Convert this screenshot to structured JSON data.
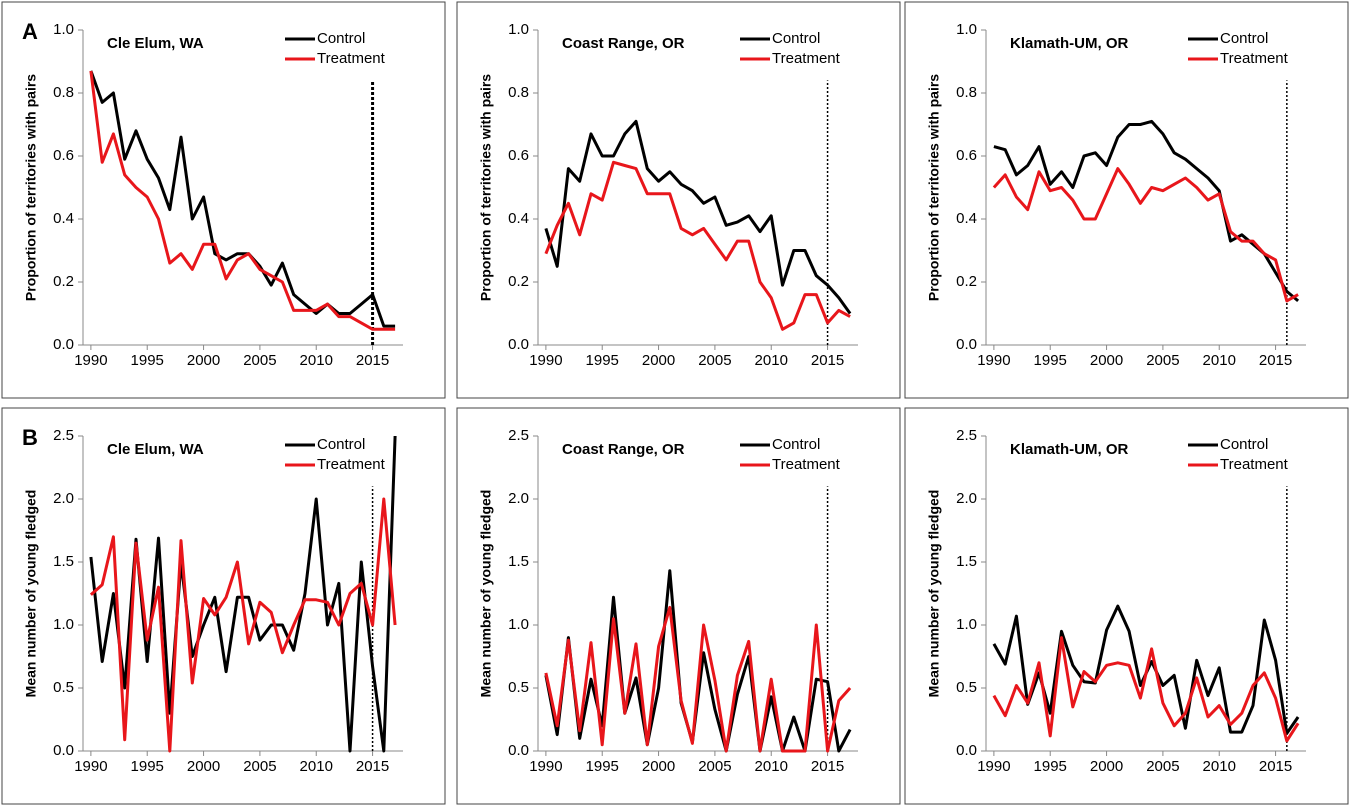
{
  "chart_data": [
    {
      "type": "line",
      "panel_label": "A",
      "title": "Cle Elum, WA",
      "ylabel": "Proportion of territories with pairs",
      "x": [
        1990,
        1991,
        1992,
        1993,
        1994,
        1995,
        1996,
        1997,
        1998,
        1999,
        2000,
        2001,
        2002,
        2003,
        2004,
        2005,
        2006,
        2007,
        2008,
        2009,
        2010,
        2011,
        2012,
        2013,
        2014,
        2015,
        2016,
        2017
      ],
      "series": [
        {
          "name": "Control",
          "color": "#000000",
          "values": [
            0.87,
            0.77,
            0.8,
            0.59,
            0.68,
            0.59,
            0.53,
            0.43,
            0.66,
            0.4,
            0.47,
            0.29,
            0.27,
            0.29,
            0.29,
            0.25,
            0.19,
            0.26,
            0.16,
            0.13,
            0.1,
            0.13,
            0.1,
            0.1,
            0.13,
            0.16,
            0.06,
            0.06
          ]
        },
        {
          "name": "Treatment",
          "color": "#e8161b",
          "values": [
            0.87,
            0.58,
            0.67,
            0.54,
            0.5,
            0.47,
            0.4,
            0.26,
            0.29,
            0.24,
            0.32,
            0.32,
            0.21,
            0.27,
            0.29,
            0.24,
            0.22,
            0.2,
            0.11,
            0.11,
            0.11,
            0.13,
            0.09,
            0.09,
            0.07,
            0.05,
            0.05,
            0.05
          ]
        }
      ],
      "xlim": [
        1989.3,
        2017.7
      ],
      "xticks": [
        1990,
        1995,
        2000,
        2005,
        2010,
        2015
      ],
      "ylim": [
        0,
        1
      ],
      "yticks": [
        {
          "value": 0,
          "label": "0.0"
        },
        0.2,
        0.4,
        0.6,
        0.8,
        {
          "value": 1,
          "label": "1.0"
        }
      ],
      "vline": 2015,
      "legend": "upper right"
    },
    {
      "type": "line",
      "title": "Coast Range, OR",
      "ylabel": "Proportion of territories with pairs",
      "x": [
        1990,
        1991,
        1992,
        1993,
        1994,
        1995,
        1996,
        1997,
        1998,
        1999,
        2000,
        2001,
        2002,
        2003,
        2004,
        2005,
        2006,
        2007,
        2008,
        2009,
        2010,
        2011,
        2012,
        2013,
        2014,
        2015,
        2016,
        2017
      ],
      "series": [
        {
          "name": "Control",
          "color": "#000000",
          "values": [
            0.37,
            0.25,
            0.56,
            0.52,
            0.67,
            0.6,
            0.6,
            0.67,
            0.71,
            0.56,
            0.52,
            0.55,
            0.51,
            0.49,
            0.45,
            0.47,
            0.38,
            0.39,
            0.41,
            0.36,
            0.41,
            0.19,
            0.3,
            0.3,
            0.22,
            0.19,
            0.15,
            0.1
          ]
        },
        {
          "name": "Treatment",
          "color": "#e8161b",
          "values": [
            0.29,
            0.38,
            0.45,
            0.35,
            0.48,
            0.46,
            0.58,
            0.57,
            0.56,
            0.48,
            0.48,
            0.48,
            0.37,
            0.35,
            0.37,
            0.32,
            0.27,
            0.33,
            0.33,
            0.2,
            0.15,
            0.05,
            0.07,
            0.16,
            0.16,
            0.07,
            0.11,
            0.09
          ]
        }
      ],
      "xlim": [
        1989.3,
        2017.7
      ],
      "xticks": [
        1990,
        1995,
        2000,
        2005,
        2010,
        2015
      ],
      "ylim": [
        0,
        1
      ],
      "yticks": [
        {
          "value": 0,
          "label": "0.0"
        },
        0.2,
        0.4,
        0.6,
        0.8,
        {
          "value": 1,
          "label": "1.0"
        }
      ],
      "vline": 2015,
      "legend": "upper right"
    },
    {
      "type": "line",
      "title": "Klamath-UM, OR",
      "ylabel": "Proportion of territories with pairs",
      "x": [
        1990,
        1991,
        1992,
        1993,
        1994,
        1995,
        1996,
        1997,
        1998,
        1999,
        2000,
        2001,
        2002,
        2003,
        2004,
        2005,
        2006,
        2007,
        2008,
        2009,
        2010,
        2011,
        2012,
        2013,
        2014,
        2015,
        2016,
        2017
      ],
      "series": [
        {
          "name": "Control",
          "color": "#000000",
          "values": [
            0.63,
            0.62,
            0.54,
            0.57,
            0.63,
            0.51,
            0.55,
            0.5,
            0.6,
            0.61,
            0.57,
            0.66,
            0.7,
            0.7,
            0.71,
            0.67,
            0.61,
            0.59,
            0.56,
            0.53,
            0.49,
            0.33,
            0.35,
            0.32,
            0.29,
            0.23,
            0.17,
            0.14
          ]
        },
        {
          "name": "Treatment",
          "color": "#e8161b",
          "values": [
            0.5,
            0.54,
            0.47,
            0.43,
            0.55,
            0.49,
            0.5,
            0.46,
            0.4,
            0.4,
            0.48,
            0.56,
            0.51,
            0.45,
            0.5,
            0.49,
            0.51,
            0.53,
            0.5,
            0.46,
            0.48,
            0.36,
            0.33,
            0.33,
            0.29,
            0.27,
            0.14,
            0.16
          ]
        }
      ],
      "xlim": [
        1989.3,
        2017.7
      ],
      "xticks": [
        1990,
        1995,
        2000,
        2005,
        2010,
        2015
      ],
      "ylim": [
        0,
        1
      ],
      "yticks": [
        {
          "value": 0,
          "label": "0.0"
        },
        0.2,
        0.4,
        0.6,
        0.8,
        {
          "value": 1,
          "label": "1.0"
        }
      ],
      "vline": 2016,
      "legend": "upper right"
    },
    {
      "type": "line",
      "panel_label": "B",
      "title": "Cle Elum, WA",
      "ylabel": "Mean number of young fledged",
      "x": [
        1990,
        1991,
        1992,
        1993,
        1994,
        1995,
        1996,
        1997,
        1998,
        1999,
        2000,
        2001,
        2002,
        2003,
        2004,
        2005,
        2006,
        2007,
        2008,
        2009,
        2010,
        2011,
        2012,
        2013,
        2014,
        2015,
        2016,
        2017
      ],
      "series": [
        {
          "name": "Control",
          "color": "#000000",
          "values": [
            1.54,
            0.71,
            1.25,
            0.5,
            1.68,
            0.71,
            1.69,
            0.3,
            1.5,
            0.75,
            1.0,
            1.22,
            0.63,
            1.22,
            1.22,
            0.88,
            1.0,
            1.0,
            0.8,
            1.25,
            2.0,
            1.0,
            1.33,
            0.0,
            1.5,
            0.67,
            0.0,
            2.5
          ]
        },
        {
          "name": "Treatment",
          "color": "#e8161b",
          "values": [
            1.24,
            1.32,
            1.7,
            0.09,
            1.65,
            0.88,
            1.3,
            0.0,
            1.67,
            0.54,
            1.21,
            1.08,
            1.22,
            1.5,
            0.85,
            1.18,
            1.1,
            0.78,
            1.0,
            1.2,
            1.2,
            1.18,
            1.0,
            1.25,
            1.33,
            1.0,
            2.0,
            1.0
          ]
        }
      ],
      "xlim": [
        1989.3,
        2017.7
      ],
      "xticks": [
        1990,
        1995,
        2000,
        2005,
        2010,
        2015
      ],
      "ylim": [
        0,
        2.5
      ],
      "yticks": [
        {
          "value": 0,
          "label": "0.0"
        },
        0.5,
        {
          "value": 1,
          "label": "1.0"
        },
        1.5,
        {
          "value": 2,
          "label": "2.0"
        },
        2.5
      ],
      "vline": 2015,
      "legend": "upper right"
    },
    {
      "type": "line",
      "title": "Coast Range, OR",
      "ylabel": "Mean number of young fledged",
      "x": [
        1990,
        1991,
        1992,
        1993,
        1994,
        1995,
        1996,
        1997,
        1998,
        1999,
        2000,
        2001,
        2002,
        2003,
        2004,
        2005,
        2006,
        2007,
        2008,
        2009,
        2010,
        2011,
        2012,
        2013,
        2014,
        2015,
        2016,
        2017
      ],
      "series": [
        {
          "name": "Control",
          "color": "#000000",
          "values": [
            0.6,
            0.13,
            0.9,
            0.1,
            0.57,
            0.2,
            1.22,
            0.3,
            0.58,
            0.05,
            0.5,
            1.43,
            0.38,
            0.07,
            0.78,
            0.33,
            0.0,
            0.45,
            0.75,
            0.0,
            0.43,
            0.0,
            0.27,
            0.0,
            0.57,
            0.55,
            0.0,
            0.17
          ]
        },
        {
          "name": "Treatment",
          "color": "#e8161b",
          "values": [
            0.62,
            0.2,
            0.88,
            0.16,
            0.86,
            0.05,
            1.05,
            0.3,
            0.85,
            0.05,
            0.83,
            1.14,
            0.4,
            0.06,
            1.0,
            0.56,
            0.0,
            0.6,
            0.87,
            0.0,
            0.57,
            0.0,
            0.0,
            0.0,
            1.0,
            0.0,
            0.4,
            0.5
          ]
        }
      ],
      "xlim": [
        1989.3,
        2017.7
      ],
      "xticks": [
        1990,
        1995,
        2000,
        2005,
        2010,
        2015
      ],
      "ylim": [
        0,
        2.5
      ],
      "yticks": [
        {
          "value": 0,
          "label": "0.0"
        },
        0.5,
        {
          "value": 1,
          "label": "1.0"
        },
        1.5,
        {
          "value": 2,
          "label": "2.0"
        },
        2.5
      ],
      "vline": 2015,
      "legend": "upper right"
    },
    {
      "type": "line",
      "title": "Klamath-UM, OR",
      "ylabel": "Mean number of young fledged",
      "x": [
        1990,
        1991,
        1992,
        1993,
        1994,
        1995,
        1996,
        1997,
        1998,
        1999,
        2000,
        2001,
        2002,
        2003,
        2004,
        2005,
        2006,
        2007,
        2008,
        2009,
        2010,
        2011,
        2012,
        2013,
        2014,
        2015,
        2016,
        2017
      ],
      "series": [
        {
          "name": "Control",
          "color": "#000000",
          "values": [
            0.85,
            0.69,
            1.07,
            0.37,
            0.62,
            0.3,
            0.95,
            0.68,
            0.55,
            0.54,
            0.96,
            1.15,
            0.95,
            0.52,
            0.71,
            0.52,
            0.6,
            0.18,
            0.72,
            0.44,
            0.66,
            0.15,
            0.15,
            0.36,
            1.04,
            0.72,
            0.14,
            0.27
          ]
        },
        {
          "name": "Treatment",
          "color": "#e8161b",
          "values": [
            0.44,
            0.28,
            0.52,
            0.38,
            0.7,
            0.12,
            0.9,
            0.35,
            0.63,
            0.55,
            0.68,
            0.7,
            0.68,
            0.42,
            0.81,
            0.38,
            0.2,
            0.3,
            0.58,
            0.27,
            0.36,
            0.21,
            0.3,
            0.52,
            0.62,
            0.42,
            0.08,
            0.22
          ]
        }
      ],
      "xlim": [
        1989.3,
        2017.7
      ],
      "xticks": [
        1990,
        1995,
        2000,
        2005,
        2010,
        2015
      ],
      "ylim": [
        0,
        2.5
      ],
      "yticks": [
        {
          "value": 0,
          "label": "0.0"
        },
        0.5,
        {
          "value": 1,
          "label": "1.0"
        },
        1.5,
        {
          "value": 2,
          "label": "2.0"
        },
        2.5
      ],
      "vline": 2016,
      "legend": "upper right"
    }
  ]
}
